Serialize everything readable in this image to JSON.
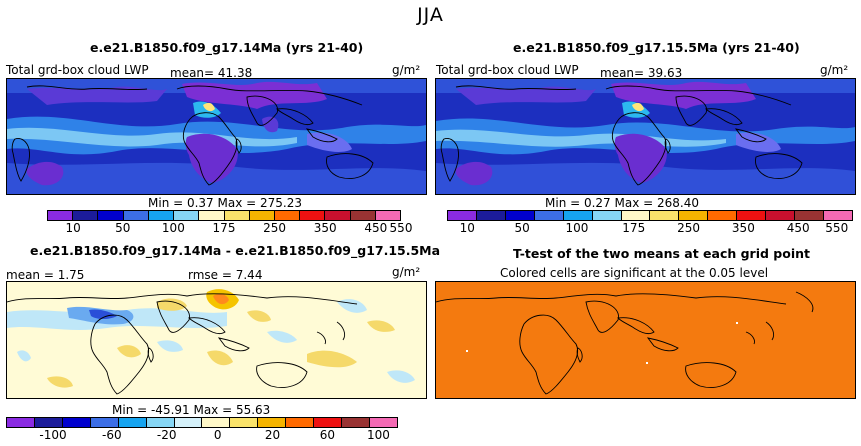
{
  "suptitle": "JJA",
  "panels": [
    {
      "title": "e.e21.B1850.f09_g17.14Ma (yrs 21-40)",
      "left_label": "Total grd-box cloud LWP",
      "mean_label": "mean=   41.38",
      "units": "g/m²",
      "min_max": "Min =    0.37  Max =  275.23",
      "colorbar_ticks": [
        "10",
        "50",
        "100",
        "175",
        "250",
        "350",
        "450",
        "550"
      ],
      "colors": [
        "#8a2be2",
        "#1c1c9a",
        "#0000cd",
        "#3c6ee6",
        "#16a4f0",
        "#86d6f5",
        "#fff8c8",
        "#fae36b",
        "#f5b400",
        "#ff6a00",
        "#ee1111",
        "#c8102e",
        "#993333",
        "#f46ab4"
      ]
    },
    {
      "title": "e.e21.B1850.f09_g17.15.5Ma (yrs 21-40)",
      "left_label": "Total grd-box cloud LWP",
      "mean_label": "mean=   39.63",
      "units": "g/m²",
      "min_max": "Min =    0.27  Max =  268.40",
      "colorbar_ticks": [
        "10",
        "50",
        "100",
        "175",
        "250",
        "350",
        "450",
        "550"
      ]
    },
    {
      "title": "e.e21.B1850.f09_g17.14Ma - e.e21.B1850.f09_g17.15.5Ma",
      "mean_label": "mean =    1.75",
      "rmse_label": "rmse =    7.44",
      "units": "g/m²",
      "min_max": "Min = -45.91  Max =  55.63",
      "colorbar_ticks": [
        "-100",
        "-60",
        "-20",
        "0",
        "20",
        "60",
        "100"
      ]
    },
    {
      "title": "T-test of the two means at each grid point",
      "subtitle": "Colored cells are significant at the 0.05 level",
      "fill_color": "#f47a0f"
    }
  ]
}
